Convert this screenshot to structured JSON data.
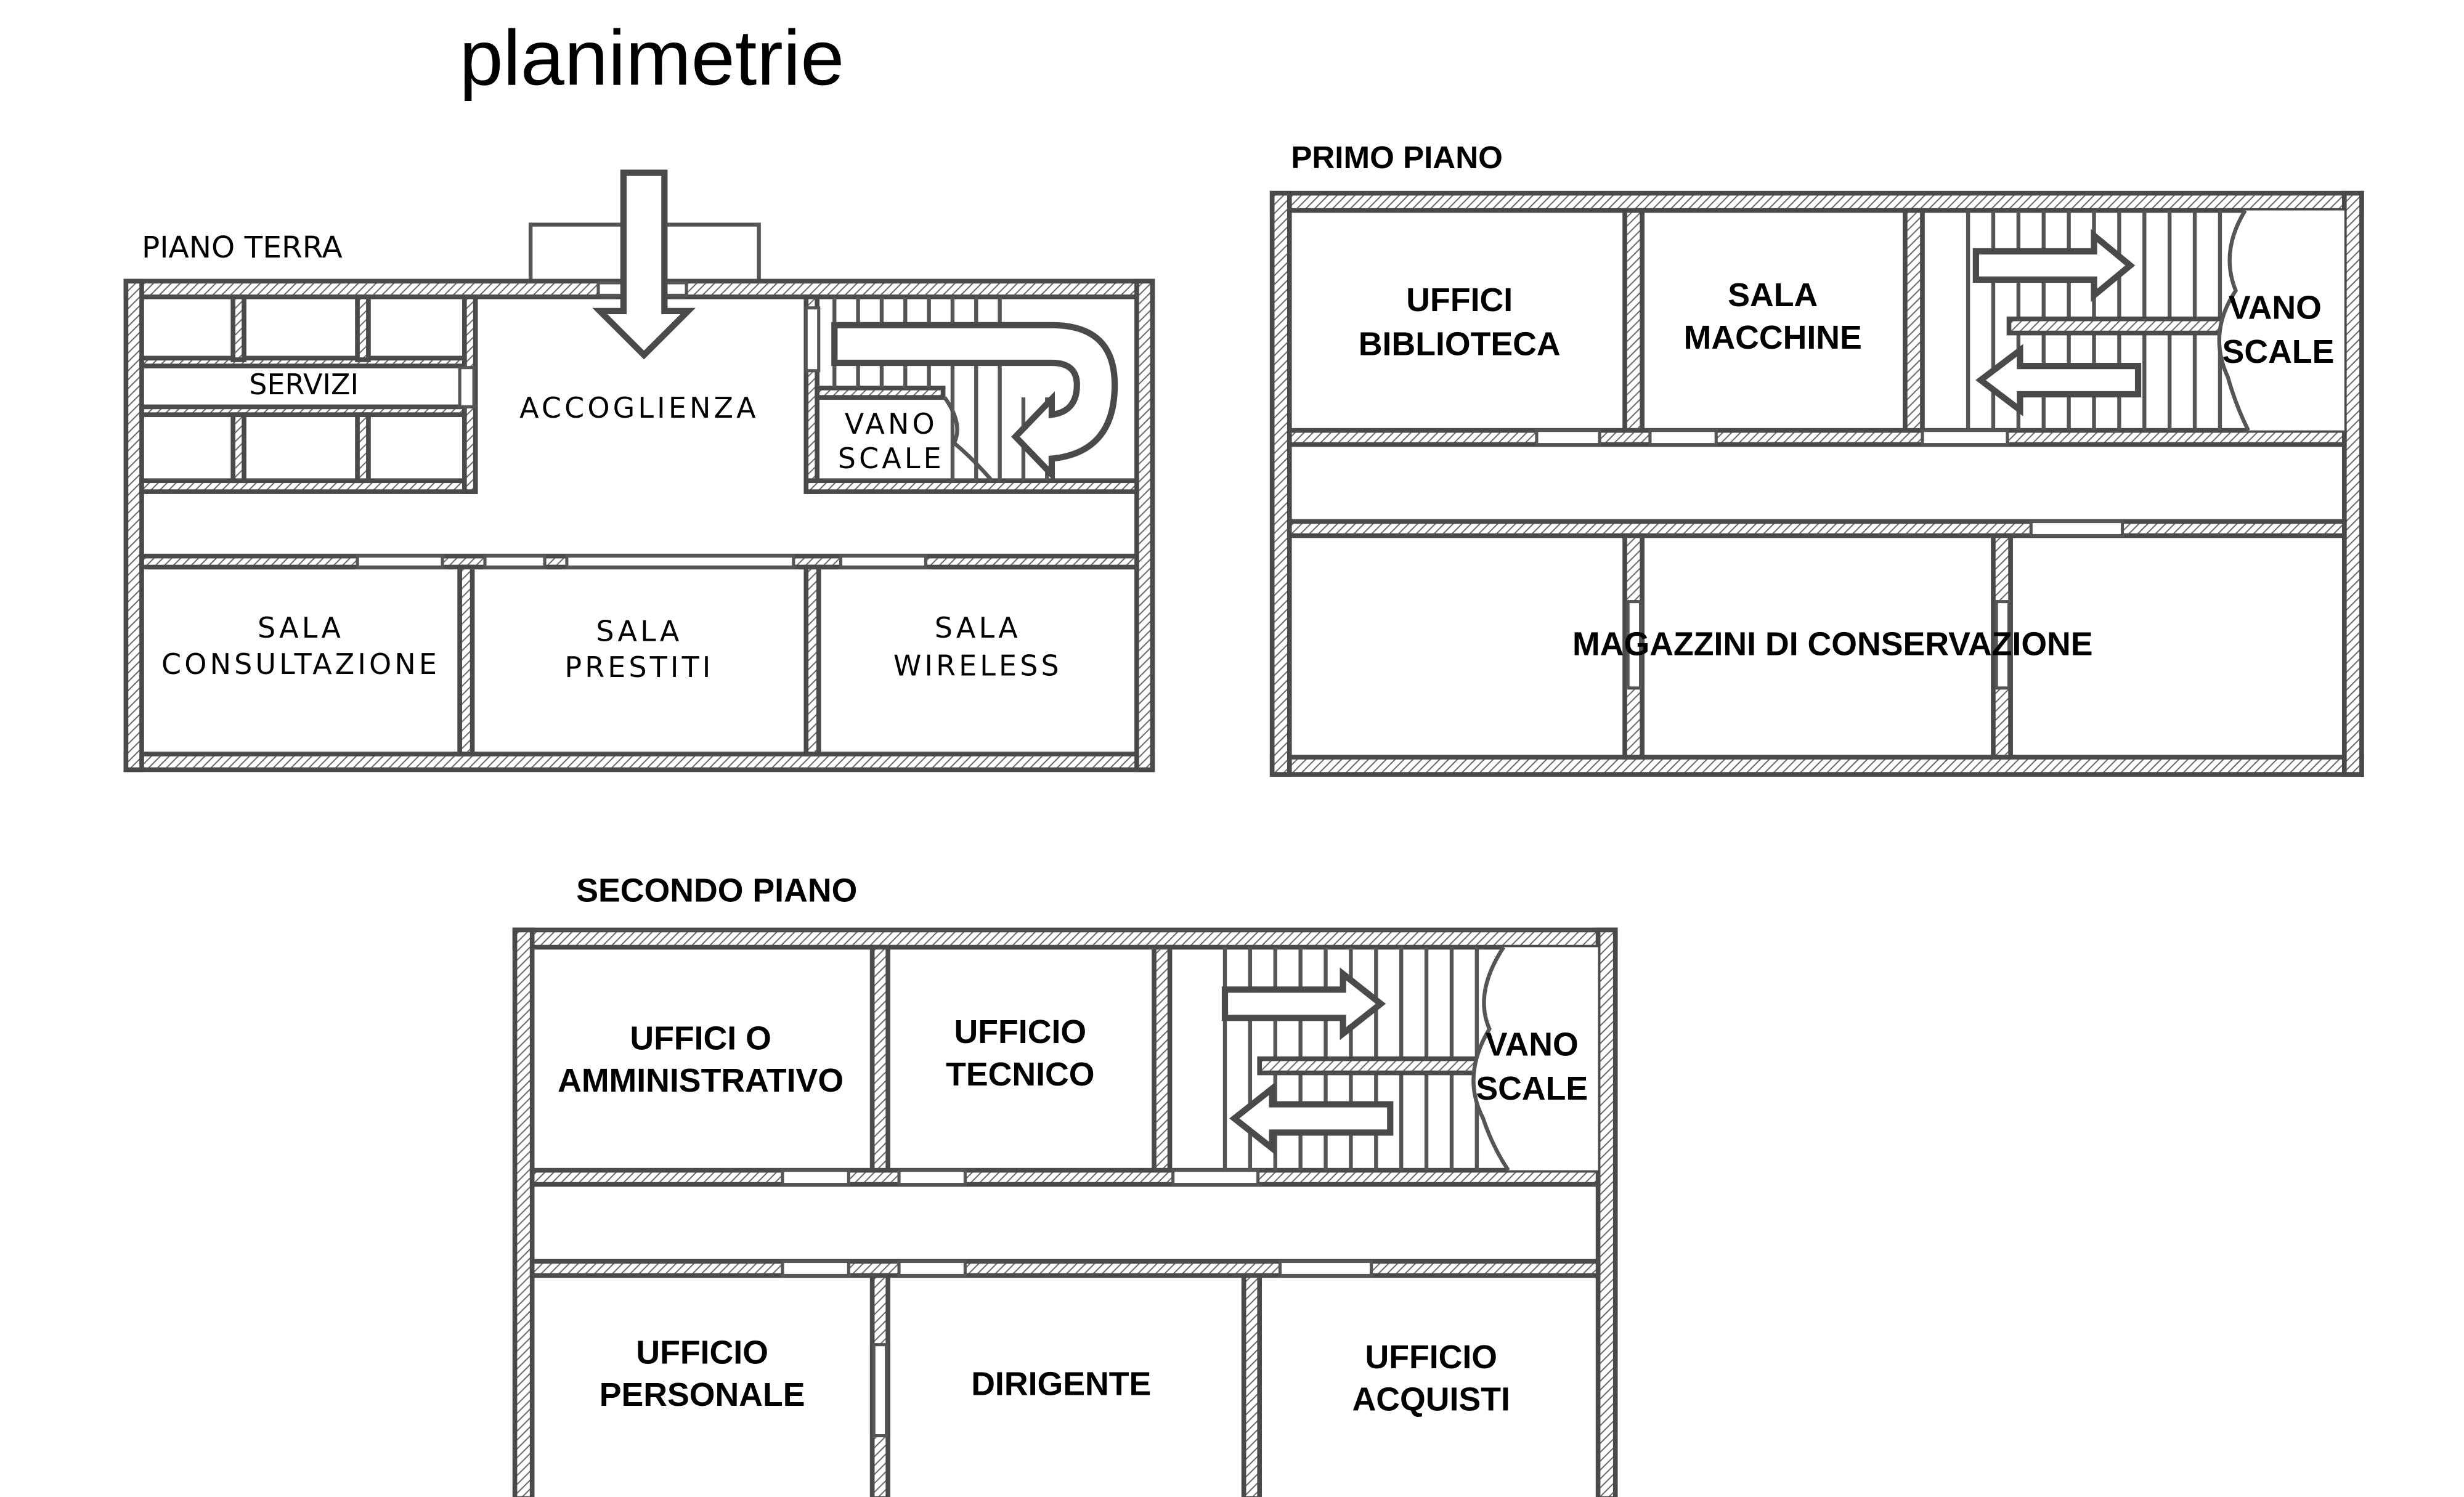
{
  "title": "planimetrie",
  "floors": {
    "ground": {
      "label": "PIANO TERRA",
      "rooms": {
        "servizi": "SERVIZI",
        "accoglienza": "ACCOGLIENZA",
        "vano_scale_1": "VANO",
        "vano_scale_2": "SCALE",
        "consultazione_1": "SALA",
        "consultazione_2": "CONSULTAZIONE",
        "prestiti_1": "SALA",
        "prestiti_2": "PRESTITI",
        "wireless_1": "SALA",
        "wireless_2": "WIRELESS"
      }
    },
    "first": {
      "label": "PRIMO PIANO",
      "rooms": {
        "uffici_1": "UFFICI",
        "uffici_2": "BIBLIOTECA",
        "macchine_1": "SALA",
        "macchine_2": "MACCHINE",
        "vano_scale_1": "VANO",
        "vano_scale_2": "SCALE",
        "magazzini": "MAGAZZINI DI CONSERVAZIONE"
      }
    },
    "second": {
      "label": "SECONDO PIANO",
      "rooms": {
        "amministrativo_1": "UFFICI O",
        "amministrativo_2": "AMMINISTRATIVO",
        "tecnico_1": "UFFICIO",
        "tecnico_2": "TECNICO",
        "vano_scale_1": "VANO",
        "vano_scale_2": "SCALE",
        "personale_1": "UFFICIO",
        "personale_2": "PERSONALE",
        "dirigente": "DIRIGENTE",
        "acquisti_1": "UFFICIO",
        "acquisti_2": "ACQUISTI"
      }
    }
  }
}
